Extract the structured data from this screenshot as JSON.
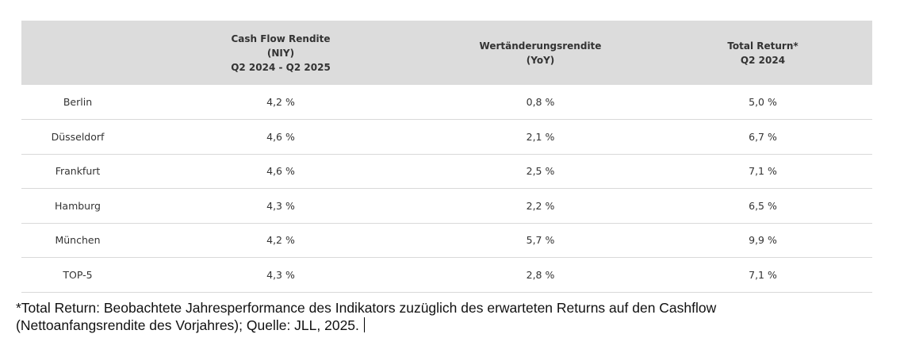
{
  "table": {
    "headers": [
      {
        "lines": [
          ""
        ]
      },
      {
        "lines": [
          "Cash Flow Rendite",
          "(NIY)",
          "Q2 2024 - Q2 2025"
        ]
      },
      {
        "lines": [
          "Wertänderungsrendite",
          "(YoY)"
        ]
      },
      {
        "lines": [
          "Total Return*",
          "Q2 2024"
        ]
      }
    ],
    "rows": [
      {
        "city": "Berlin",
        "cash_flow": "4,2 %",
        "wert": "0,8 %",
        "total": "5,0 %"
      },
      {
        "city": "Düsseldorf",
        "cash_flow": "4,6 %",
        "wert": "2,1 %",
        "total": "6,7 %"
      },
      {
        "city": "Frankfurt",
        "cash_flow": "4,6 %",
        "wert": "2,5 %",
        "total": "7,1 %"
      },
      {
        "city": "Hamburg",
        "cash_flow": "4,3 %",
        "wert": "2,2 %",
        "total": "6,5 %"
      },
      {
        "city": "München",
        "cash_flow": "4,2 %",
        "wert": "5,7 %",
        "total": "9,9 %"
      },
      {
        "city": "TOP-5",
        "cash_flow": "4,3 %",
        "wert": "2,8 %",
        "total": "7,1 %"
      }
    ]
  },
  "footnote": {
    "line1": "*Total Return: Beobachtete Jahresperformance des Indikators zuzüglich des erwarteten Returns auf den Cashflow",
    "line2": "(Nettoanfangsrendite des Vorjahres); Quelle: JLL, 2025."
  },
  "colors": {
    "header_bg": "#dcdcdc",
    "row_border": "#d9d9d9",
    "text": "#333333"
  }
}
